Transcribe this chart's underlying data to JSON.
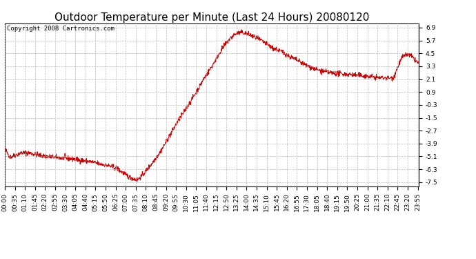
{
  "title": "Outdoor Temperature per Minute (Last 24 Hours) 20080120",
  "copyright_text": "Copyright 2008 Cartronics.com",
  "line_color": "#cc0000",
  "bg_color": "#ffffff",
  "plot_bg_color": "#ffffff",
  "grid_color": "#aaaaaa",
  "yticks": [
    6.9,
    5.7,
    4.5,
    3.3,
    2.1,
    0.9,
    -0.3,
    -1.5,
    -2.7,
    -3.9,
    -5.1,
    -6.3,
    -7.5
  ],
  "ylim": [
    -7.9,
    7.3
  ],
  "title_fontsize": 11,
  "tick_fontsize": 6.5,
  "copyright_fontsize": 6.5,
  "xtick_interval_minutes": 35,
  "fig_width": 6.9,
  "fig_height": 3.75
}
